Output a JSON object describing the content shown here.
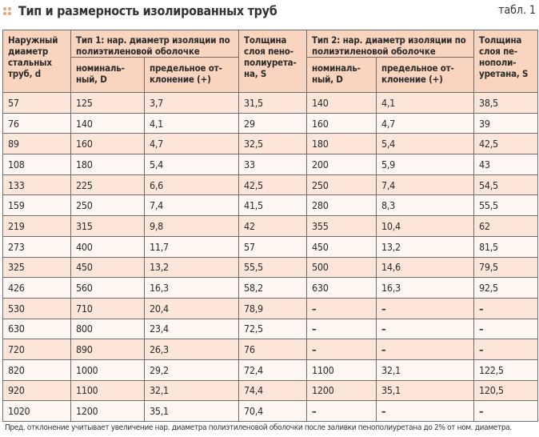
{
  "title": "Тип и размерность изолированных труб",
  "table_label": "табл. 1",
  "colors": {
    "header_bg": "#f9d4be",
    "row_odd": "#fce6da",
    "row_even": "#fef6f1",
    "bullet": "#f0a070"
  },
  "headers": {
    "col1": "Наружный диаметр стальных труб, d",
    "type1": "Тип 1: нар. диаметр изоляции по полиэтиленовой оболочке",
    "thick1": "Толщина слоя пено-полиурета-на, S",
    "type2": "Тип 2: нар. диаметр изоляции по полиэтиленовой оболочке",
    "thick2": "Толщина слоя пе-нополи-уретана, S",
    "nominal1": "номиналь-ный, D",
    "dev1": "предельное от-клонение (+)",
    "nominal2": "номиналь-ный, D",
    "dev2": "предельное от-клонение (+)"
  },
  "rows": [
    [
      "57",
      "125",
      "3,7",
      "31,5",
      "140",
      "4,1",
      "38,5"
    ],
    [
      "76",
      "140",
      "4,1",
      "29",
      "160",
      "4,7",
      "39"
    ],
    [
      "89",
      "160",
      "4,7",
      "32,5",
      "180",
      "5,4",
      "42,5"
    ],
    [
      "108",
      "180",
      "5,4",
      "33",
      "200",
      "5,9",
      "43"
    ],
    [
      "133",
      "225",
      "6,6",
      "42,5",
      "250",
      "7,4",
      "54,5"
    ],
    [
      "159",
      "250",
      "7,4",
      "41,5",
      "280",
      "8,3",
      "55,5"
    ],
    [
      "219",
      "315",
      "9,8",
      "42",
      "355",
      "10,4",
      "62"
    ],
    [
      "273",
      "400",
      "11,7",
      "57",
      "450",
      "13,2",
      "81,5"
    ],
    [
      "325",
      "450",
      "13,2",
      "55,5",
      "500",
      "14,6",
      "79,5"
    ],
    [
      "426",
      "560",
      "16,3",
      "58,2",
      "630",
      "16,3",
      "92,5"
    ],
    [
      "530",
      "710",
      "20,4",
      "78,9",
      "–",
      "–",
      "–"
    ],
    [
      "630",
      "800",
      "23,4",
      "72,5",
      "–",
      "–",
      "–"
    ],
    [
      "720",
      "890",
      "26,3",
      "76",
      "–",
      "–",
      "–"
    ],
    [
      "820",
      "1000",
      "29,2",
      "72,4",
      "1100",
      "32,1",
      "122,5"
    ],
    [
      "920",
      "1100",
      "32,1",
      "74,4",
      "1200",
      "35,1",
      "120,5"
    ],
    [
      "1020",
      "1200",
      "35,1",
      "70,4",
      "–",
      "–",
      "–"
    ]
  ],
  "footnote": "Пред. отклонение учитывает увеличение нар. диаметра полиэтиленовой оболочки после заливки пенополиуретана до 2% от ном. диаметра."
}
